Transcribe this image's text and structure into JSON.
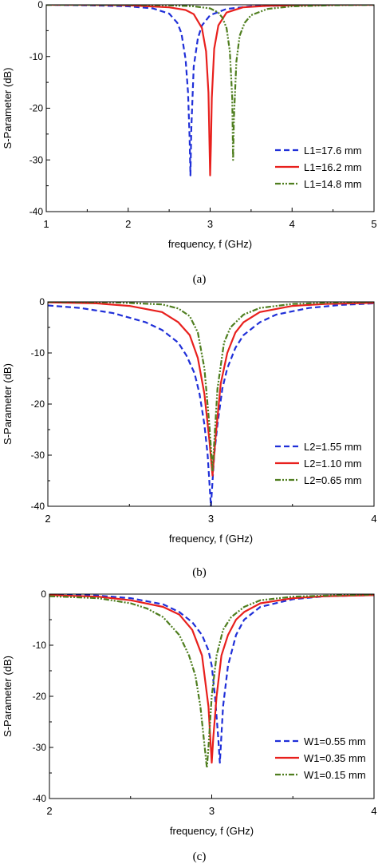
{
  "chart_data": [
    {
      "type": "line",
      "caption": "(a)",
      "xlabel": "frequency, f (GHz)",
      "ylabel": "S-Parameter (dB)",
      "xlim": [
        1,
        5
      ],
      "ylim": [
        -40,
        0
      ],
      "xticks": [
        "1",
        "2",
        "3",
        "4",
        "5"
      ],
      "yticks": [
        "0",
        "-10",
        "-20",
        "-30",
        "-40"
      ],
      "grid": false,
      "legend_position": "lower-right",
      "series": [
        {
          "name": "L1=17.6 mm",
          "color": "#1f2fd8",
          "dash": "dashed",
          "x": [
            1.0,
            1.5,
            2.0,
            2.3,
            2.5,
            2.6,
            2.65,
            2.7,
            2.73,
            2.75,
            2.76,
            2.77,
            2.8,
            2.85,
            2.9,
            3.0,
            3.2,
            3.5,
            4.0,
            4.5,
            5.0
          ],
          "y": [
            0,
            -0.1,
            -0.3,
            -0.7,
            -1.7,
            -3.5,
            -5.5,
            -10.5,
            -17,
            -26,
            -33,
            -24,
            -12,
            -6.5,
            -4,
            -2,
            -0.8,
            -0.3,
            -0.1,
            0,
            0
          ]
        },
        {
          "name": "L1=16.2 mm",
          "color": "#e8201d",
          "dash": "solid",
          "x": [
            1.0,
            1.5,
            2.0,
            2.5,
            2.7,
            2.8,
            2.9,
            2.95,
            2.98,
            3.0,
            3.01,
            3.02,
            3.05,
            3.1,
            3.2,
            3.4,
            3.7,
            4.0,
            4.5,
            5.0
          ],
          "y": [
            0,
            0,
            -0.1,
            -0.5,
            -1.0,
            -1.8,
            -4.5,
            -9,
            -17,
            -33,
            -27,
            -18,
            -8.5,
            -4,
            -1.5,
            -0.5,
            -0.2,
            -0.1,
            0,
            0
          ]
        },
        {
          "name": "L1=14.8 mm",
          "color": "#4f7e1f",
          "dash": "dashdotdot",
          "x": [
            1.0,
            2.0,
            2.5,
            2.8,
            3.0,
            3.1,
            3.15,
            3.2,
            3.24,
            3.27,
            3.28,
            3.29,
            3.32,
            3.36,
            3.42,
            3.5,
            3.7,
            4.0,
            4.5,
            5.0
          ],
          "y": [
            0,
            0,
            -0.1,
            -0.3,
            -0.7,
            -1.5,
            -2.5,
            -4.5,
            -9,
            -18,
            -30,
            -22,
            -11,
            -6,
            -3.5,
            -2,
            -0.8,
            -0.3,
            -0.1,
            0
          ]
        }
      ]
    },
    {
      "type": "line",
      "caption": "(b)",
      "xlabel": "frequency, f (GHz)",
      "ylabel": "S-Parameter (dB)",
      "xlim": [
        2,
        4
      ],
      "ylim": [
        -40,
        0
      ],
      "xticks": [
        "2",
        "3",
        "4"
      ],
      "yticks": [
        "0",
        "-10",
        "-20",
        "-30",
        "-40"
      ],
      "grid": false,
      "legend_position": "lower-right",
      "series": [
        {
          "name": "L2=1.55 mm",
          "color": "#1f2fd8",
          "dash": "dashed",
          "x": [
            2.0,
            2.2,
            2.4,
            2.6,
            2.7,
            2.8,
            2.85,
            2.9,
            2.93,
            2.96,
            2.98,
            3.0,
            3.02,
            3.04,
            3.07,
            3.1,
            3.15,
            3.2,
            3.3,
            3.4,
            3.6,
            3.8,
            4.0
          ],
          "y": [
            -0.7,
            -1.2,
            -2.2,
            -4,
            -5.5,
            -8,
            -10.5,
            -14,
            -18,
            -24,
            -30,
            -40,
            -30,
            -24,
            -17,
            -13,
            -9,
            -6.5,
            -4,
            -2.5,
            -1.2,
            -0.6,
            -0.3
          ]
        },
        {
          "name": "L2=1.10 mm",
          "color": "#e8201d",
          "dash": "solid",
          "x": [
            2.0,
            2.3,
            2.5,
            2.7,
            2.8,
            2.87,
            2.92,
            2.96,
            2.99,
            3.01,
            3.03,
            3.06,
            3.1,
            3.15,
            3.2,
            3.3,
            3.5,
            3.7,
            4.0
          ],
          "y": [
            -0.1,
            -0.3,
            -0.8,
            -2,
            -4,
            -6.5,
            -11,
            -18,
            -27,
            -34,
            -26,
            -16,
            -10,
            -6,
            -4,
            -2,
            -0.8,
            -0.4,
            -0.2
          ]
        },
        {
          "name": "L2=0.65 mm",
          "color": "#4f7e1f",
          "dash": "dashdotdot",
          "x": [
            2.0,
            2.4,
            2.7,
            2.8,
            2.87,
            2.92,
            2.96,
            2.99,
            3.01,
            3.04,
            3.08,
            3.12,
            3.2,
            3.3,
            3.5,
            3.8,
            4.0
          ],
          "y": [
            0,
            -0.1,
            -0.5,
            -1.3,
            -2.8,
            -6,
            -13,
            -24,
            -33,
            -17,
            -8,
            -5,
            -2.5,
            -1.2,
            -0.4,
            -0.1,
            0
          ]
        }
      ]
    },
    {
      "type": "line",
      "caption": "(c)",
      "xlabel": "frequency, f (GHz)",
      "ylabel": "S-Parameter (dB)",
      "xlim": [
        2,
        4
      ],
      "ylim": [
        -40,
        0
      ],
      "xticks": [
        "2",
        "3",
        "4"
      ],
      "yticks": [
        "0",
        "-10",
        "-20",
        "-30",
        "-40"
      ],
      "grid": false,
      "legend_position": "lower-right",
      "series": [
        {
          "name": "W1=0.55 mm",
          "color": "#1f2fd8",
          "dash": "dashed",
          "x": [
            2.0,
            2.3,
            2.5,
            2.7,
            2.8,
            2.88,
            2.94,
            2.98,
            3.0,
            3.02,
            3.04,
            3.05,
            3.07,
            3.1,
            3.15,
            3.2,
            3.3,
            3.5,
            3.7,
            4.0
          ],
          "y": [
            0,
            -0.3,
            -0.8,
            -2,
            -3.5,
            -5.5,
            -8,
            -11,
            -14,
            -20,
            -28,
            -33,
            -22,
            -14,
            -8,
            -5,
            -2.5,
            -1,
            -0.4,
            -0.2
          ]
        },
        {
          "name": "W1=0.35 mm",
          "color": "#e8201d",
          "dash": "solid",
          "x": [
            2.0,
            2.3,
            2.5,
            2.7,
            2.8,
            2.88,
            2.94,
            2.98,
            3.0,
            3.01,
            3.03,
            3.06,
            3.1,
            3.15,
            3.2,
            3.3,
            3.5,
            3.7,
            4.0
          ],
          "y": [
            -0.2,
            -0.5,
            -1.2,
            -2.5,
            -4,
            -7,
            -12,
            -22,
            -33,
            -28,
            -20,
            -12,
            -8,
            -5,
            -3.5,
            -1.8,
            -0.8,
            -0.4,
            -0.2
          ]
        },
        {
          "name": "W1=0.15 mm",
          "color": "#4f7e1f",
          "dash": "dashdotdot",
          "x": [
            2.0,
            2.3,
            2.5,
            2.6,
            2.7,
            2.8,
            2.86,
            2.9,
            2.93,
            2.96,
            2.97,
            2.98,
            3.0,
            3.03,
            3.07,
            3.12,
            3.2,
            3.3,
            3.5,
            3.8,
            4.0
          ],
          "y": [
            -0.4,
            -0.8,
            -1.8,
            -2.8,
            -4.5,
            -8,
            -12,
            -16,
            -22,
            -31,
            -34,
            -30,
            -20,
            -12,
            -7,
            -4.5,
            -2.5,
            -1.2,
            -0.5,
            -0.2,
            -0.1
          ]
        }
      ]
    }
  ]
}
